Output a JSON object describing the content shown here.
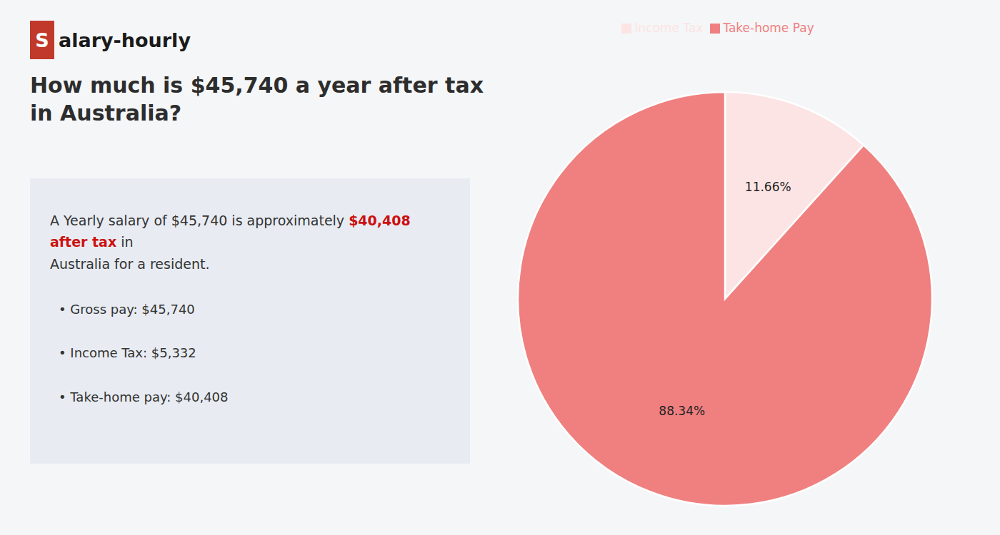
{
  "chart_data": {
    "type": "pie",
    "title": "How much is $45,740 a year after tax in Australia?",
    "annotations": [
      {
        "text": "S",
        "color": "#c0392b"
      },
      {
        "text": "alary-hourly"
      },
      {
        "text": "A Yearly salary of $45,740 is approximately "
      },
      {
        "text": "$40,408 after tax",
        "color": "#cc1111"
      },
      {
        "text": " in"
      },
      {
        "text": "Australia for a resident."
      },
      {
        "text": "•  Gross pay: $45,740"
      },
      {
        "text": "•  Income Tax: $5,332"
      },
      {
        "text": "•  Take-home pay: $40,408"
      }
    ],
    "categories": [
      "Income Tax",
      "Take-home Pay"
    ],
    "values": [
      11.66,
      88.34
    ],
    "value_labels": [
      "11.66%",
      "88.34%"
    ],
    "colors": [
      "#fce4e4",
      "#f08080"
    ],
    "data_labels": true,
    "legend": "top"
  }
}
